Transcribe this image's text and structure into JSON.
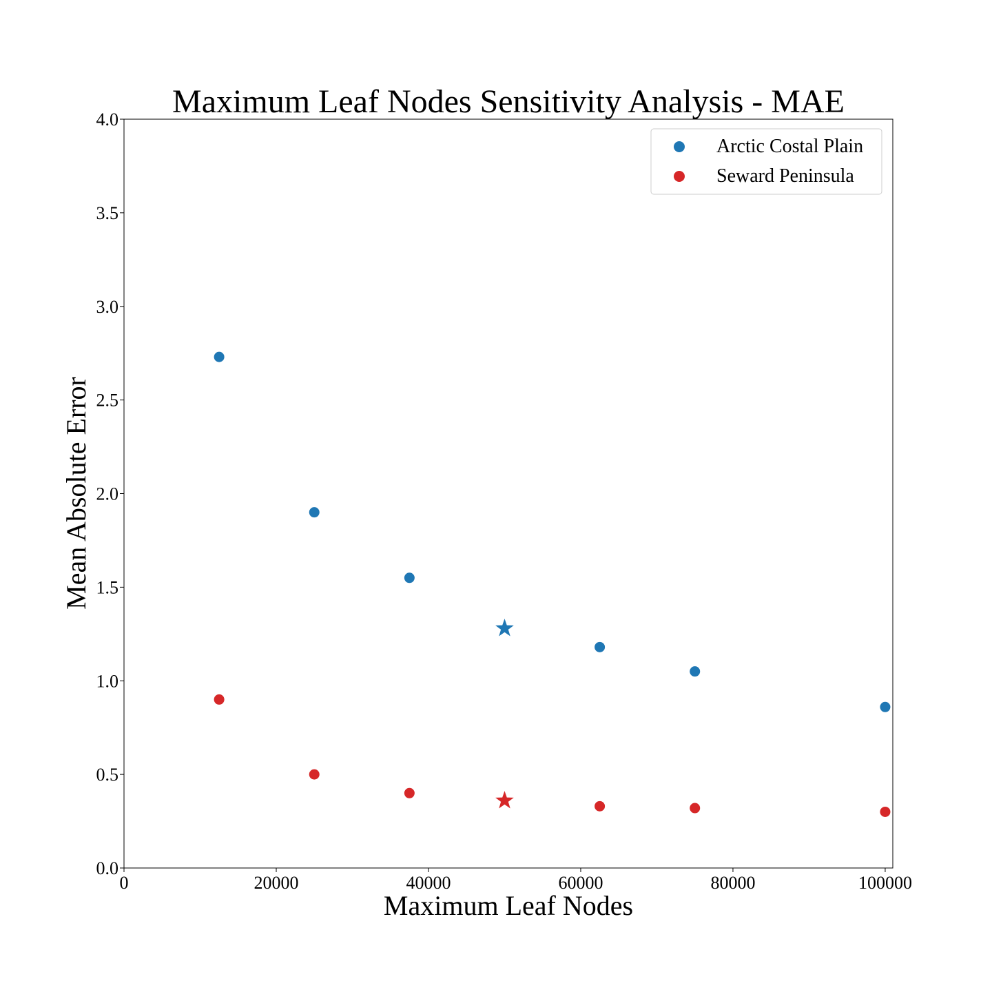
{
  "chart_data": {
    "type": "scatter",
    "title": "Maximum Leaf Nodes Sensitivity Analysis - MAE",
    "xlabel": "Maximum Leaf Nodes",
    "ylabel": "Mean Absolute Error",
    "xlim": [
      0,
      101000
    ],
    "ylim": [
      0,
      4.0
    ],
    "xticks": [
      0,
      20000,
      40000,
      60000,
      80000,
      100000
    ],
    "xtick_labels": [
      "0",
      "20000",
      "40000",
      "60000",
      "80000",
      "100000"
    ],
    "yticks": [
      0,
      0.5,
      1.0,
      1.5,
      2.0,
      2.5,
      3.0,
      3.5,
      4.0
    ],
    "ytick_labels": [
      "0.0",
      "0.5",
      "1.0",
      "1.5",
      "2.0",
      "2.5",
      "3.0",
      "3.5",
      "4.0"
    ],
    "grid": false,
    "legend_position": "top-right",
    "series": [
      {
        "name": "Arctic Costal Plain",
        "color": "#1f77b4",
        "points": [
          {
            "x": 12500,
            "y": 2.73,
            "marker": "circle"
          },
          {
            "x": 25000,
            "y": 1.9,
            "marker": "circle"
          },
          {
            "x": 37500,
            "y": 1.55,
            "marker": "circle"
          },
          {
            "x": 50000,
            "y": 1.28,
            "marker": "star"
          },
          {
            "x": 62500,
            "y": 1.18,
            "marker": "circle"
          },
          {
            "x": 75000,
            "y": 1.05,
            "marker": "circle"
          },
          {
            "x": 100000,
            "y": 0.86,
            "marker": "circle"
          }
        ]
      },
      {
        "name": "Seward Peninsula",
        "color": "#d62728",
        "points": [
          {
            "x": 12500,
            "y": 0.9,
            "marker": "circle"
          },
          {
            "x": 25000,
            "y": 0.5,
            "marker": "circle"
          },
          {
            "x": 37500,
            "y": 0.4,
            "marker": "circle"
          },
          {
            "x": 50000,
            "y": 0.36,
            "marker": "star"
          },
          {
            "x": 62500,
            "y": 0.33,
            "marker": "circle"
          },
          {
            "x": 75000,
            "y": 0.32,
            "marker": "circle"
          },
          {
            "x": 100000,
            "y": 0.3,
            "marker": "circle"
          }
        ]
      }
    ]
  }
}
